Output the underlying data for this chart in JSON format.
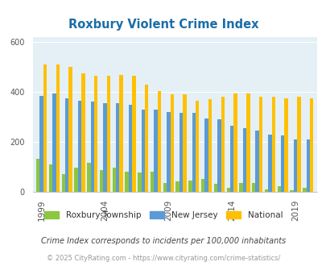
{
  "title": "Roxbury Violent Crime Index",
  "years": [
    1999,
    2000,
    2001,
    2002,
    2003,
    2004,
    2005,
    2006,
    2007,
    2008,
    2009,
    2010,
    2011,
    2012,
    2013,
    2014,
    2015,
    2016,
    2017,
    2018,
    2019,
    2020
  ],
  "roxbury": [
    130,
    110,
    70,
    95,
    115,
    85,
    95,
    80,
    75,
    80,
    35,
    40,
    45,
    50,
    30,
    15,
    35,
    35,
    10,
    20,
    5,
    15
  ],
  "new_jersey": [
    385,
    395,
    375,
    365,
    360,
    355,
    355,
    350,
    330,
    330,
    320,
    315,
    315,
    295,
    290,
    265,
    255,
    245,
    230,
    225,
    210,
    210
  ],
  "national": [
    510,
    510,
    500,
    475,
    465,
    465,
    470,
    465,
    430,
    405,
    390,
    390,
    365,
    370,
    380,
    395,
    395,
    380,
    380,
    375,
    380,
    375
  ],
  "bar_colors": {
    "roxbury": "#8dc63f",
    "new_jersey": "#5b9bd5",
    "national": "#ffc000"
  },
  "plot_bg": "#e4f0f5",
  "ylim": [
    0,
    620
  ],
  "yticks": [
    0,
    200,
    400,
    600
  ],
  "xlabel_ticks": [
    1999,
    2004,
    2009,
    2014,
    2019
  ],
  "grid_color": "#ffffff",
  "title_color": "#1a6ea8",
  "legend_labels": [
    "Roxbury Township",
    "New Jersey",
    "National"
  ],
  "footnote1": "Crime Index corresponds to incidents per 100,000 inhabitants",
  "footnote2": "© 2025 CityRating.com - https://www.cityrating.com/crime-statistics/",
  "footnote1_color": "#444444",
  "footnote2_color": "#999999",
  "bar_width": 0.28,
  "figsize": [
    4.06,
    3.3
  ],
  "dpi": 100
}
